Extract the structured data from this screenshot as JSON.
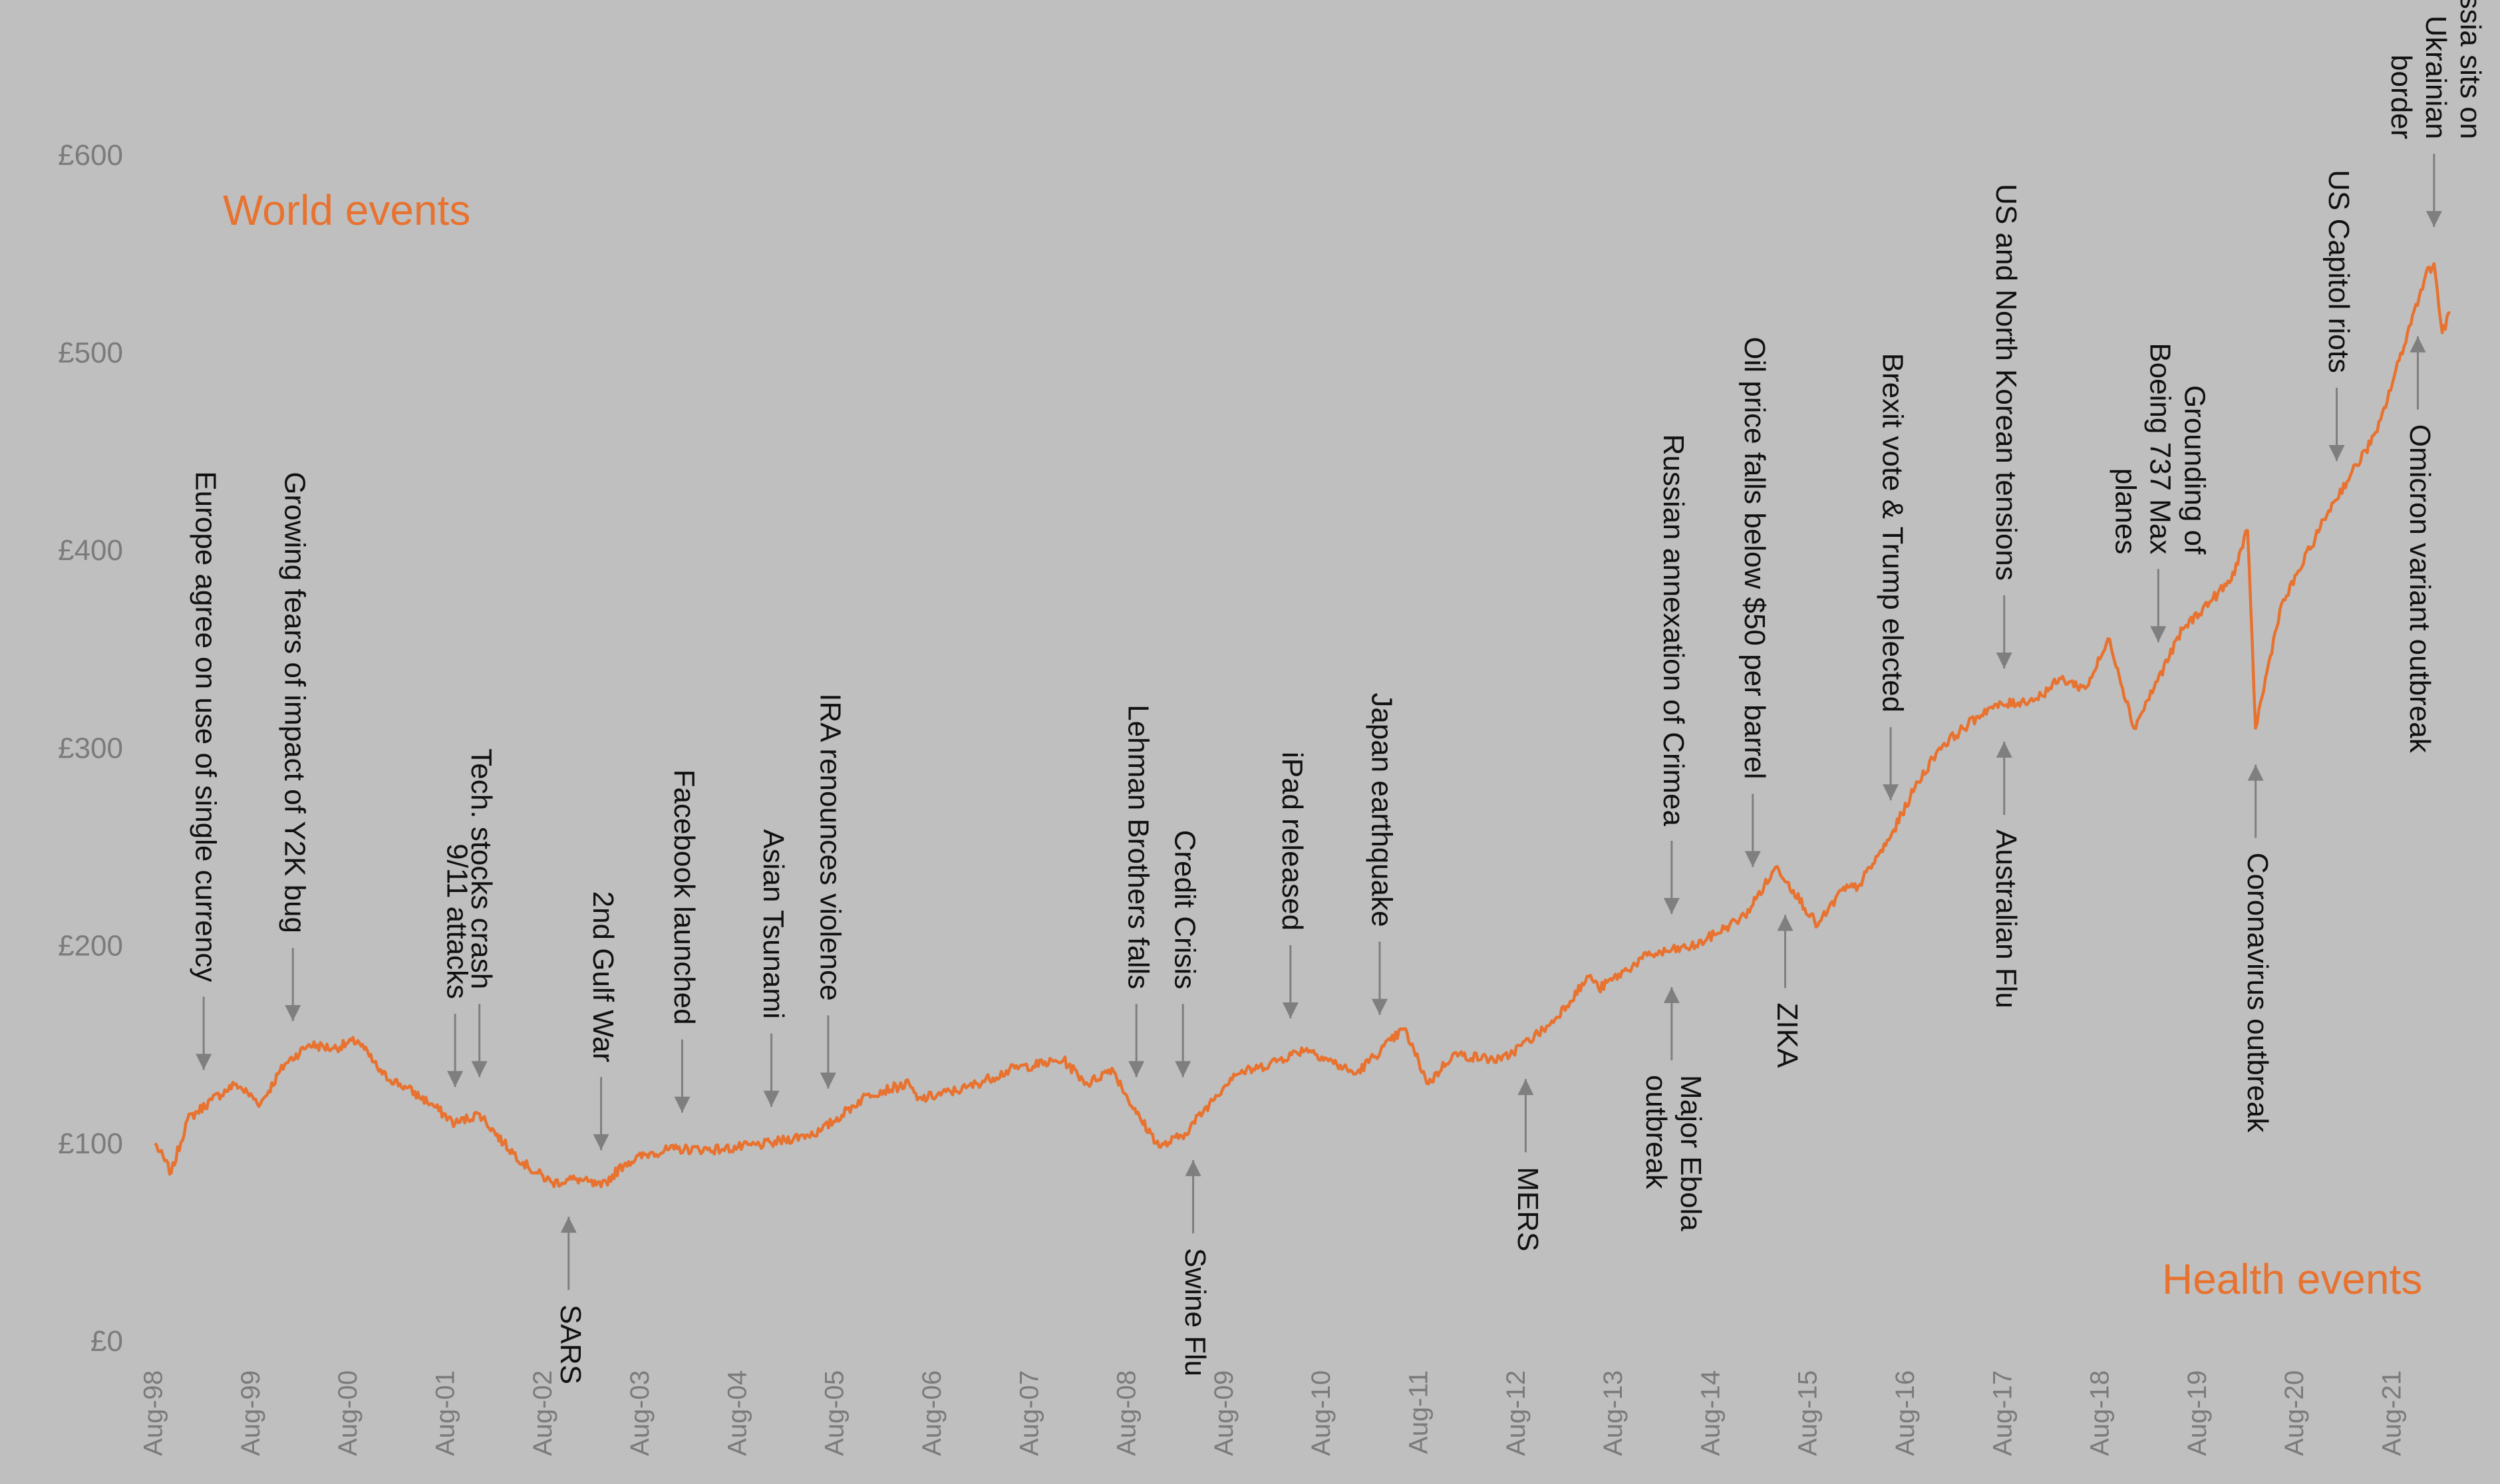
{
  "colors": {
    "background": "#bfbfbf",
    "line": "#e8722f",
    "arrow": "#7f7f7f",
    "text": "#111111",
    "axis_text": "#7b7b7b"
  },
  "chart_data": {
    "type": "line",
    "title": "",
    "xlabel": "",
    "ylabel": "",
    "ylim": [
      0,
      600
    ],
    "xlim": [
      "1998-08",
      "2022-03"
    ],
    "yticks": [
      0,
      100,
      200,
      300,
      400,
      500,
      600
    ],
    "ytick_labels": [
      "£0",
      "£100",
      "£200",
      "£300",
      "£400",
      "£500",
      "£600"
    ],
    "xtick_labels": [
      "Aug-98",
      "Aug-99",
      "Aug-00",
      "Aug-01",
      "Aug-02",
      "Aug-03",
      "Aug-04",
      "Aug-05",
      "Aug-06",
      "Aug-07",
      "Aug-08",
      "Aug-09",
      "Aug-10",
      "Aug-11",
      "Aug-12",
      "Aug-13",
      "Aug-14",
      "Aug-15",
      "Aug-16",
      "Aug-17",
      "Aug-18",
      "Aug-19",
      "Aug-20",
      "Aug-21"
    ],
    "grid": false,
    "legend": "none",
    "series": [
      {
        "x": [
          "1998-08",
          "1998-10",
          "1998-12",
          "1999-03",
          "1999-06",
          "1999-09",
          "1999-12",
          "2000-03",
          "2000-06",
          "2000-09",
          "2000-12",
          "2001-03",
          "2001-06",
          "2001-09",
          "2001-12",
          "2002-03",
          "2002-06",
          "2002-09",
          "2002-12",
          "2003-03",
          "2003-06",
          "2003-09",
          "2003-12",
          "2004-06",
          "2004-12",
          "2005-06",
          "2005-12",
          "2006-05",
          "2006-06",
          "2006-12",
          "2007-06",
          "2007-12",
          "2008-03",
          "2008-06",
          "2008-09",
          "2008-12",
          "2009-03",
          "2009-06",
          "2009-09",
          "2009-12",
          "2010-06",
          "2010-12",
          "2011-06",
          "2011-09",
          "2011-12",
          "2012-06",
          "2012-12",
          "2013-05",
          "2013-06",
          "2013-12",
          "2014-06",
          "2014-12",
          "2015-04",
          "2015-06",
          "2015-09",
          "2015-12",
          "2016-02",
          "2016-06",
          "2016-09",
          "2016-12",
          "2017-06",
          "2017-12",
          "2018-03",
          "2018-06",
          "2018-09",
          "2018-12",
          "2019-06",
          "2019-12",
          "2020-02",
          "2020-03",
          "2020-06",
          "2020-12",
          "2021-06",
          "2021-12",
          "2022-01",
          "2022-02",
          "2022-03"
        ],
        "values": [
          100,
          85,
          112,
          122,
          130,
          120,
          140,
          150,
          148,
          152,
          135,
          128,
          120,
          110,
          115,
          100,
          88,
          80,
          82,
          78,
          90,
          95,
          97,
          97,
          100,
          106,
          125,
          130,
          122,
          128,
          138,
          142,
          130,
          138,
          115,
          98,
          105,
          120,
          135,
          138,
          148,
          135,
          158,
          130,
          145,
          142,
          160,
          185,
          178,
          195,
          200,
          215,
          240,
          228,
          210,
          228,
          230,
          255,
          280,
          300,
          320,
          325,
          335,
          330,
          355,
          310,
          360,
          385,
          410,
          310,
          370,
          420,
          460,
          540,
          545,
          510,
          520
        ]
      }
    ],
    "annotations": {
      "world_label": "World events",
      "health_label": "Health events",
      "world": [
        {
          "text": [
            "Europe agree on use of single currency"
          ],
          "x": "1999-02"
        },
        {
          "text": [
            "Growing fears of impact of Y2K bug"
          ],
          "x": "2000-01"
        },
        {
          "text": [
            "9/11 attacks"
          ],
          "x": "2001-09"
        },
        {
          "text": [
            "Tech. stocks crash"
          ],
          "x": "2001-12"
        },
        {
          "text": [
            "2nd Gulf War"
          ],
          "x": "2003-03"
        },
        {
          "text": [
            "Facebook launched"
          ],
          "x": "2004-01"
        },
        {
          "text": [
            "Asian Tsunami"
          ],
          "x": "2004-12"
        },
        {
          "text": [
            "IRA renounces violence"
          ],
          "x": "2005-07"
        },
        {
          "text": [
            "Lehman Brothers falls"
          ],
          "x": "2008-09"
        },
        {
          "text": [
            "Credit Crisis"
          ],
          "x": "2008-09"
        },
        {
          "text": [
            "iPad released"
          ],
          "x": "2010-04"
        },
        {
          "text": [
            "Japan earthquake"
          ],
          "x": "2011-03"
        },
        {
          "text": [
            "Russian annexation of Crimea"
          ],
          "x": "2014-03"
        },
        {
          "text": [
            "Oil price falls below $50 per barrel"
          ],
          "x": "2015-01"
        },
        {
          "text": [
            "Brexit vote & Trump elected"
          ],
          "x": "2016-06"
        },
        {
          "text": [
            "US and North Korean tensions"
          ],
          "x": "2017-08"
        },
        {
          "text": [
            "Grounding of",
            "Boeing 737 Max",
            "planes"
          ],
          "x": "2019-03"
        },
        {
          "text": [
            "US Capitol riots"
          ],
          "x": "2021-01"
        },
        {
          "text": [
            "Russia sits on",
            "Ukrainian",
            "border"
          ],
          "x": "2022-01"
        }
      ],
      "health": [
        {
          "text": [
            "SARS"
          ],
          "x": "2002-11"
        },
        {
          "text": [
            "Swine Flu"
          ],
          "x": "2009-04"
        },
        {
          "text": [
            "MERS"
          ],
          "x": "2012-09"
        },
        {
          "text": [
            "Major Ebola",
            "outbreak"
          ],
          "x": "2014-03"
        },
        {
          "text": [
            "ZIKA"
          ],
          "x": "2015-05"
        },
        {
          "text": [
            "Australian Flu"
          ],
          "x": "2017-08"
        },
        {
          "text": [
            "Coronavirus outbreak"
          ],
          "x": "2020-03"
        },
        {
          "text": [
            "Omicron variant outbreak"
          ],
          "x": "2021-11"
        }
      ]
    }
  }
}
